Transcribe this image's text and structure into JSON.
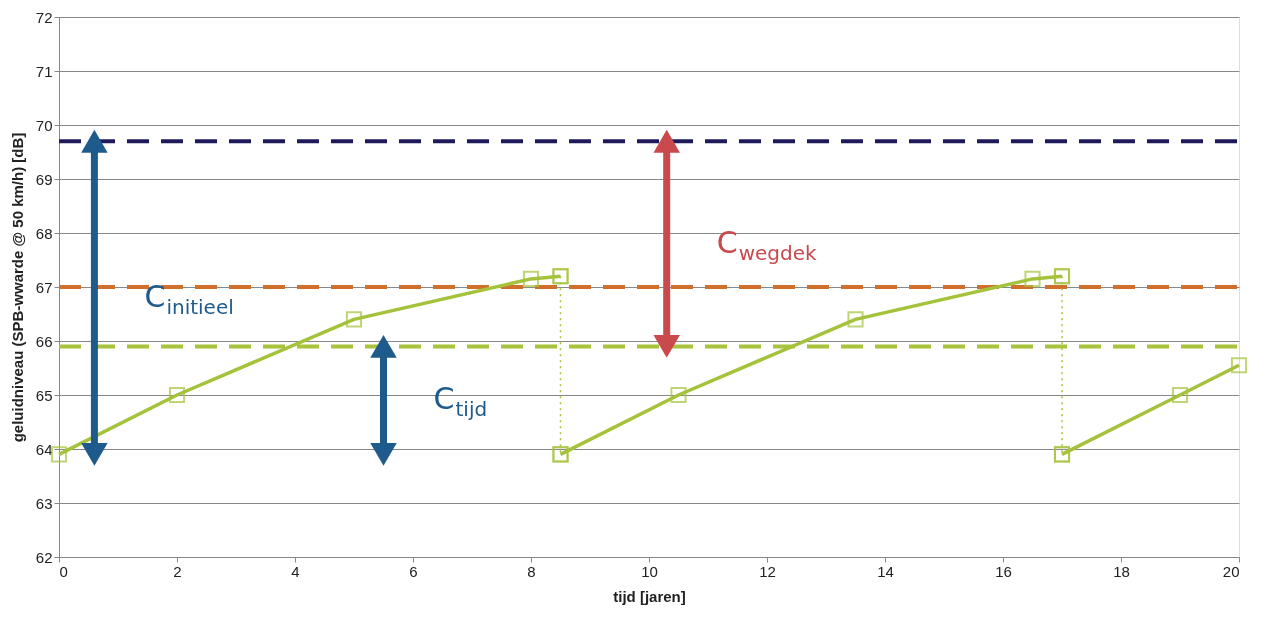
{
  "chart_data": {
    "type": "line",
    "xlabel": "tijd [jaren]",
    "ylabel": "geluidniveau (SPB-wwarde @ 50 km/h) [dB]",
    "xlim": [
      0,
      20
    ],
    "xticks": [
      0,
      2,
      4,
      6,
      8,
      10,
      12,
      14,
      16,
      18,
      20
    ],
    "ylim": [
      62,
      72
    ],
    "yticks": [
      62,
      63,
      64,
      65,
      66,
      67,
      68,
      69,
      70,
      71,
      72
    ],
    "grid": "y",
    "marker": "square",
    "line_style": "solid",
    "series": [
      {
        "color": "#a4c23a",
        "x": [
          0,
          2,
          5,
          8,
          8.5
        ],
        "values": [
          63.9,
          65,
          66.4,
          67.15,
          67.2
        ]
      },
      {
        "color": "#a4c23a",
        "x": [
          8.5,
          8.5
        ],
        "values": [
          67.2,
          63.9
        ],
        "line_style": "dotted"
      },
      {
        "color": "#a4c23a",
        "x": [
          8.5,
          10.5,
          13.5,
          16.5,
          17
        ],
        "values": [
          63.9,
          65,
          66.4,
          67.15,
          67.2
        ]
      },
      {
        "color": "#a4c23a",
        "x": [
          17,
          17
        ],
        "values": [
          67.2,
          63.9
        ],
        "line_style": "dotted"
      },
      {
        "color": "#a4c23a",
        "x": [
          17,
          19,
          20
        ],
        "values": [
          63.9,
          65,
          65.55
        ]
      },
      {
        "color": "#1f5a8c",
        "x": [
          0.6,
          0.6
        ],
        "values": [
          69.7,
          63.9
        ],
        "marker": "triangle"
      },
      {
        "color": "#1f5a8c",
        "x": [
          5.5,
          5.5
        ],
        "values": [
          65.9,
          63.9
        ],
        "marker": "triangle"
      },
      {
        "color": "#c9494d",
        "x": [
          10.3,
          10.3
        ],
        "values": [
          69.7,
          65.9
        ],
        "marker": "triangle"
      }
    ],
    "ref_lines": [
      {
        "axis": "y",
        "value": 69.7,
        "color": "#1f1a5c",
        "line_style": "dashed"
      },
      {
        "axis": "y",
        "value": 67,
        "color": "#d0702c",
        "line_style": "dashed"
      },
      {
        "axis": "y",
        "value": 65.9,
        "color": "#a8c43c",
        "line_style": "dashed"
      }
    ],
    "annotations": [
      "C$_{initieel}$",
      "C$_{tijd}$",
      "C$_{wegdek}$"
    ]
  }
}
